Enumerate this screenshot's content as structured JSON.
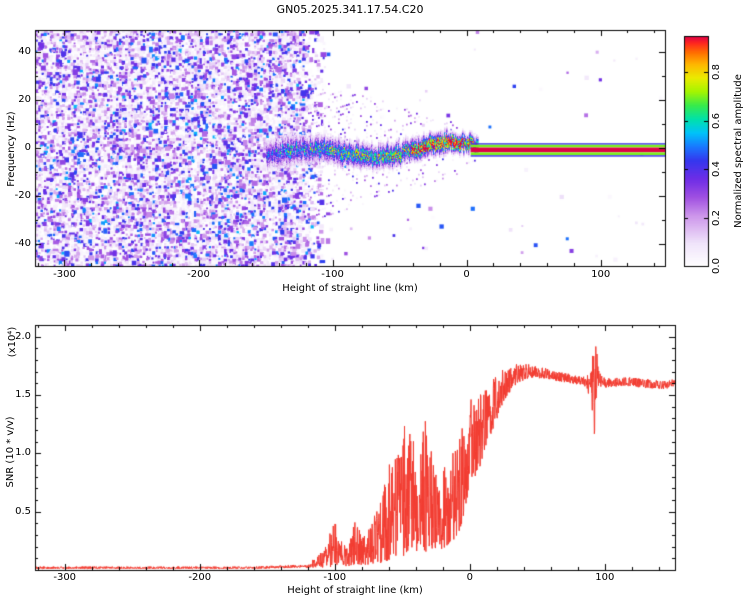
{
  "title": "GN05.2025.341.17.54.C20",
  "colors": {
    "snr_line": "#f23b30",
    "frame": "#000000",
    "background": "#ffffff"
  },
  "chart_data": [
    {
      "type": "heatmap",
      "panel": "doppler-spectrogram",
      "title": "GN05.2025.341.17.54.C20",
      "xlabel": "Height of straight line (km)",
      "ylabel": "Frequency (Hz)",
      "xlim": [
        -322,
        148
      ],
      "ylim": [
        -49,
        49
      ],
      "xticks": [
        -300,
        -200,
        -100,
        0,
        100
      ],
      "yticks": [
        -40,
        -20,
        0,
        20,
        40
      ],
      "grid": false,
      "colorbar": {
        "label": "Normalized spectral amplitude",
        "ticks": [
          0.0,
          0.2,
          0.4,
          0.6,
          0.8
        ],
        "range": [
          0,
          0.95
        ],
        "colormap": "white-purple-blue-cyan-green-yellow-orange-red"
      },
      "content": {
        "noise_field": {
          "x_range": [
            -322,
            -128
          ],
          "fade_out_x": -104,
          "amplitude_range": [
            0,
            0.5
          ],
          "description": "dense purple speckle noise over all frequencies before signal acquisition"
        },
        "signal_track": {
          "x_range": [
            -150,
            8
          ],
          "center_frequency_hz": 0,
          "frequency_wander_hz": 4,
          "halfwidth_hz_start": 5.5,
          "halfwidth_hz_end": 2.8,
          "core_amplitude_start": 0.45,
          "core_amplitude_end": 1.0,
          "red_core_x_range": [
            -42,
            -4
          ],
          "description": "noisy Doppler track converging to 0 Hz, red high-amplitude dashes near -35..-5 km"
        },
        "carrier_line": {
          "x_range": [
            3,
            148
          ],
          "center_frequency_hz": -0.8,
          "core_amplitude": 1.0,
          "description": "clean narrow carrier line: red core bordered by green then dark blue edges"
        }
      }
    },
    {
      "type": "line",
      "panel": "snr",
      "xlabel": "Height of straight line (km)",
      "ylabel": "SNR (10 * v/v)",
      "ylabel_scale": "(x10⁴)",
      "xlim": [
        -322,
        152
      ],
      "ylim": [
        0,
        2.1
      ],
      "xticks": [
        -300,
        -200,
        -100,
        0,
        100
      ],
      "yticks": [
        0.5,
        1.0,
        1.5,
        2.0
      ],
      "line_color": "#f23b30",
      "legend": null,
      "envelope": {
        "x": [
          -322,
          -160,
          -120,
          -108,
          -100,
          -95,
          -90,
          -84,
          -78,
          -72,
          -66,
          -60,
          -54,
          -48,
          -43,
          -38,
          -33,
          -28,
          -23,
          -18,
          -13,
          -8,
          -4,
          0,
          4,
          8,
          12,
          17,
          22,
          28,
          35,
          45,
          60,
          75,
          85,
          90,
          92,
          94,
          96,
          99,
          105,
          115,
          130,
          145,
          152
        ],
        "lo": [
          0.01,
          0.01,
          0.02,
          0.02,
          0.03,
          0.04,
          0.03,
          0.05,
          0.04,
          0.05,
          0.06,
          0.08,
          0.1,
          0.12,
          0.15,
          0.12,
          0.15,
          0.18,
          0.15,
          0.2,
          0.25,
          0.3,
          0.5,
          0.7,
          0.8,
          0.9,
          1.05,
          1.2,
          1.35,
          1.5,
          1.6,
          1.65,
          1.63,
          1.6,
          1.58,
          1.45,
          1.1,
          1.5,
          1.55,
          1.55,
          1.57,
          1.58,
          1.56,
          1.55,
          1.58
        ],
        "hi": [
          0.03,
          0.03,
          0.05,
          0.18,
          0.42,
          0.25,
          0.2,
          0.5,
          0.3,
          0.45,
          0.6,
          0.9,
          1.0,
          1.25,
          1.35,
          1.1,
          1.3,
          1.05,
          0.8,
          0.9,
          1.0,
          1.1,
          1.3,
          1.45,
          1.5,
          1.55,
          1.6,
          1.65,
          1.7,
          1.75,
          1.78,
          1.76,
          1.72,
          1.68,
          1.66,
          1.7,
          2.06,
          1.95,
          1.7,
          1.66,
          1.64,
          1.66,
          1.64,
          1.62,
          1.64
        ]
      }
    }
  ]
}
